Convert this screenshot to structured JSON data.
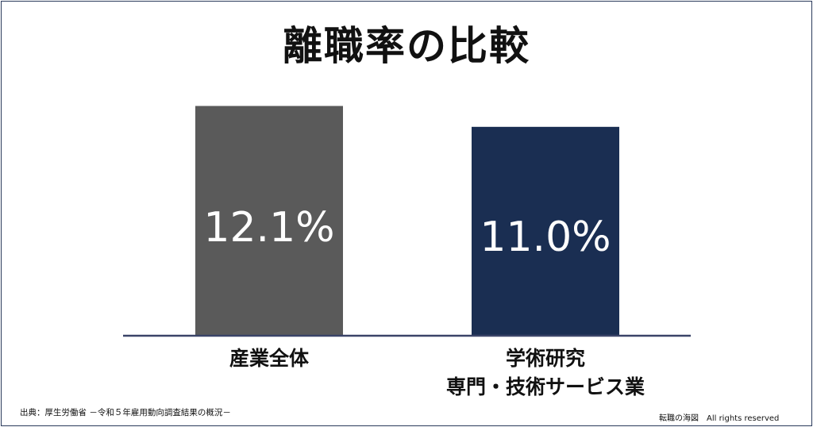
{
  "chart_data": {
    "type": "bar",
    "title": "離職率の比較",
    "categories": [
      [
        "産業全体"
      ],
      [
        "学術研究",
        "専門・技術サービス業"
      ]
    ],
    "values": [
      12.1,
      11.0
    ],
    "value_labels": [
      "12.1%",
      "11.0%"
    ],
    "colors": [
      "#5a5a5a",
      "#1a2e52"
    ],
    "ylim": [
      0,
      13.5
    ],
    "xlabel": "",
    "ylabel": "",
    "grid": false
  },
  "footer": {
    "source": "出典：厚生労働省 －令和５年雇用動向調査結果の概況－",
    "credit": "転職の海図　All rights reserved"
  }
}
